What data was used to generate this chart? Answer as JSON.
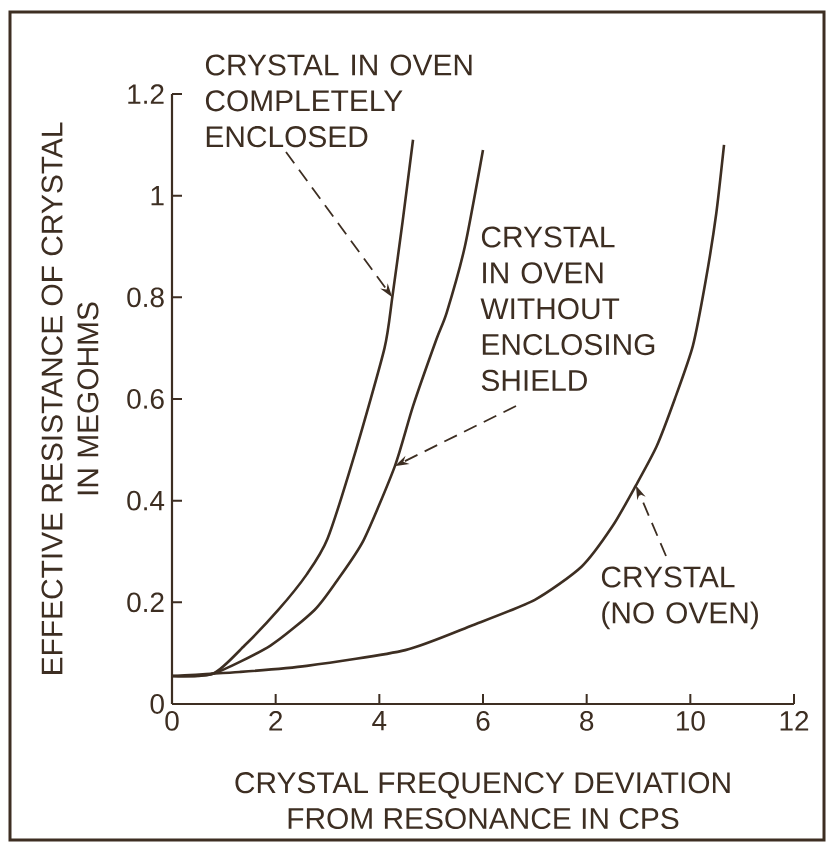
{
  "chart_data": {
    "type": "line",
    "xlabel": "CRYSTAL FREQUENCY DEVIATION FROM RESONANCE IN CPS",
    "ylabel": "EFFECTIVE RESISTANCE OF CRYSTAL IN MEGOHMS",
    "xlim": [
      0,
      12
    ],
    "ylim": [
      0,
      1.2
    ],
    "xticks": [
      0,
      2,
      4,
      6,
      8,
      10,
      12
    ],
    "yticks": [
      0,
      0.2,
      0.4,
      0.6,
      0.8,
      1,
      1.2
    ],
    "series": [
      {
        "color": "#3d2e22",
        "x": [
          0,
          0.8,
          1.4,
          2.05,
          2.6,
          3.0,
          3.55,
          4.1,
          4.25,
          4.45,
          4.65
        ],
        "values": [
          0.055,
          0.06,
          0.115,
          0.185,
          0.255,
          0.325,
          0.5,
          0.7,
          0.8,
          0.95,
          1.11
        ]
      },
      {
        "color": "#3d2e22",
        "x": [
          0,
          0.8,
          1.9,
          2.75,
          3.2,
          3.7,
          4.3,
          4.65,
          5.1,
          5.3,
          5.65,
          6.0
        ],
        "values": [
          0.055,
          0.06,
          0.115,
          0.185,
          0.245,
          0.323,
          0.468,
          0.586,
          0.717,
          0.77,
          0.9,
          1.09
        ]
      },
      {
        "color": "#3d2e22",
        "x": [
          0,
          1.3,
          2.6,
          4.5,
          5.8,
          7.0,
          7.9,
          8.5,
          8.95,
          9.35,
          9.7,
          10.05,
          10.3,
          10.5,
          10.65
        ],
        "values": [
          0.055,
          0.063,
          0.075,
          0.106,
          0.155,
          0.205,
          0.27,
          0.35,
          0.43,
          0.507,
          0.6,
          0.705,
          0.835,
          0.965,
          1.1
        ]
      }
    ],
    "annotations": [
      {
        "text": "CRYSTAL IN OVEN COMPLETELY ENCLOSED",
        "x": 4.25,
        "y": 0.8
      },
      {
        "text": "CRYSTAL IN OVEN WITHOUT ENCLOSING SHIELD",
        "x": 4.3,
        "y": 0.468
      },
      {
        "text": "CRYSTAL (NO OVEN)",
        "x": 8.95,
        "y": 0.43
      }
    ]
  }
}
